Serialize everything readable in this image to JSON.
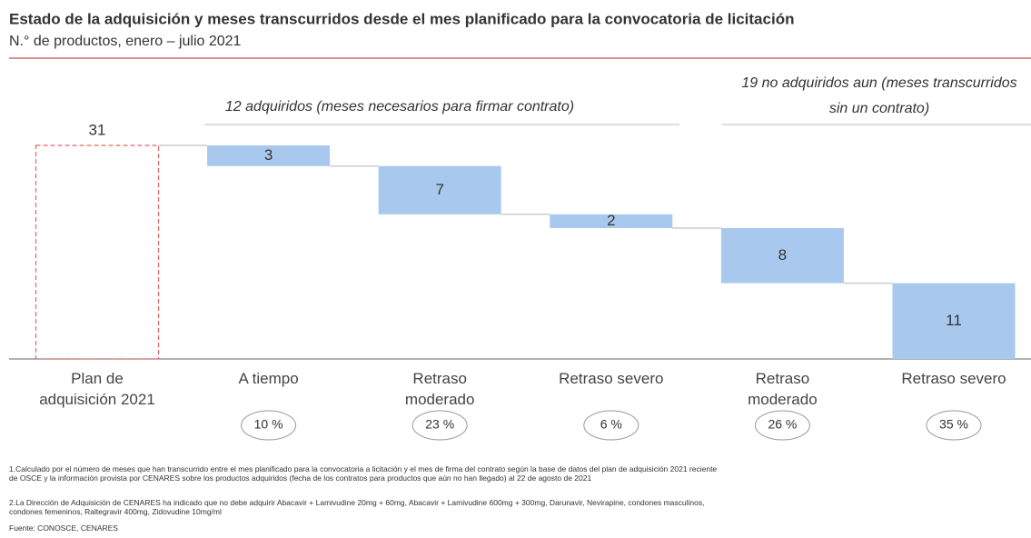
{
  "chart_data": {
    "type": "waterfall",
    "title": "Estado de la adquisición y meses transcurridos desde el mes planificado para la convocatoria de licitación",
    "subtitle": "N.° de productos, enero – julio 2021",
    "categories": [
      "Plan de adquisición 2021",
      "A tiempo",
      "Retraso moderado",
      "Retraso severo",
      "Retraso moderado",
      "Retraso severo"
    ],
    "values": [
      31,
      3,
      7,
      2,
      8,
      11
    ],
    "colors": {
      "total": "#e06666",
      "step": "#a9c8ee"
    },
    "shares": {
      "values": [
        10,
        23,
        6,
        26,
        35
      ],
      "labels": [
        "10 %",
        "23 %",
        "6 %",
        "26 %",
        "35 %"
      ]
    },
    "groups": [
      {
        "lines": [
          "12 adquiridos (meses necesarios para firmar contrato)"
        ]
      },
      {
        "lines": [
          "19 no adquiridos aun (meses transcurridos",
          "sin un contrato)"
        ]
      }
    ],
    "notes": [
      "1.Calculado por el número de meses que han transcurrido entre el mes planificado para la convocatoria a licitación y el mes de firma del contrato según la base de datos del plan de adquisición 2021 reciente de OSCE y la información provista por CENARES sobre los productos adquiridos (fecha de los contratos para productos que aún no han llegado) al 22 de agosto de 2021",
      "2.La Dirección de Adquisición de CENARES ha indicado que no debe adquirir Abacavir + Lamivudine 20mg + 60mg, Abacavir + Lamivudine 600mg + 300mg, Darunavir, Nevirapine, condones masculinos, condones femeninos, Raltegravir 400mg, Zidovudine 10mg/ml"
    ],
    "source": "Fuente: CONOSCE, CENARES"
  }
}
